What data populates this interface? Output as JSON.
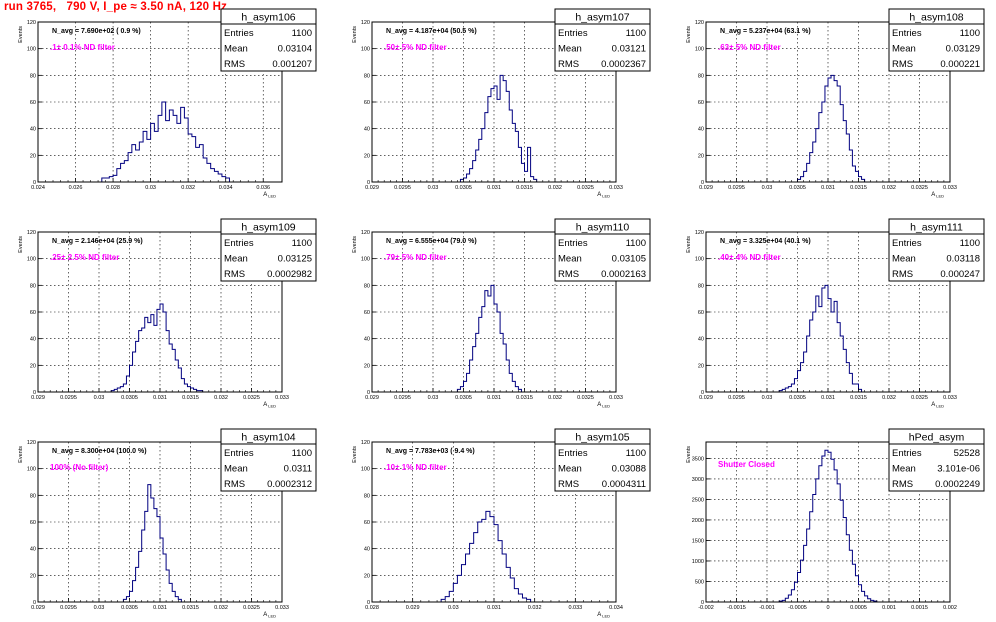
{
  "page": {
    "title": "run 3765,   790 V, I_pe ≈ 3.50 nA, 120 Hz",
    "title_color": "#ff0000",
    "hist_color": "#000080",
    "label_color": "#ff00ff"
  },
  "chart_data": [
    {
      "type": "histogram",
      "name": "h_asym106",
      "nevents": "N_avg = 7.690e+02 ( 0.9 %)",
      "filter_label": ".1± 0.1% ND filter",
      "stats": [
        [
          "Entries",
          "1100"
        ],
        [
          "Mean",
          "0.03104"
        ],
        [
          "RMS",
          "0.001207"
        ]
      ],
      "xlim": [
        0.024,
        0.037
      ],
      "ylim": [
        0,
        120
      ],
      "x_ticks": [
        0.024,
        0.026,
        0.028,
        0.03,
        0.032,
        0.034,
        0.036
      ],
      "x_tick_labels": [
        "0.024",
        "0.026",
        "0.028",
        "0.03",
        "0.032",
        "0.034",
        "0.036"
      ],
      "y_ticks": [
        0,
        20,
        40,
        60,
        80,
        100,
        120
      ],
      "xlabel": "A",
      "xlabel_sub": "LED",
      "ylabel": "Events",
      "bins": {
        "start": 0.0274,
        "width": 0.0002,
        "counts": [
          3,
          3,
          4,
          5,
          10,
          14,
          16,
          22,
          28,
          24,
          30,
          38,
          32,
          44,
          38,
          50,
          60,
          46,
          54,
          50,
          44,
          56,
          48,
          36,
          34,
          26,
          28,
          18,
          14,
          10,
          8,
          6,
          4,
          3
        ]
      }
    },
    {
      "type": "histogram",
      "name": "h_asym107",
      "nevents": "N_avg = 4.187e+04 (50.5 %)",
      "filter_label": ".50± 5% ND filter",
      "stats": [
        [
          "Entries",
          "1100"
        ],
        [
          "Mean",
          "0.03121"
        ],
        [
          "RMS",
          "0.0002367"
        ]
      ],
      "xlim": [
        0.029,
        0.033
      ],
      "ylim": [
        0,
        120
      ],
      "x_ticks": [
        0.029,
        0.0295,
        0.03,
        0.0305,
        0.031,
        0.0315,
        0.032,
        0.0325,
        0.033
      ],
      "x_tick_labels": [
        "0.029",
        "0.0295",
        "0.03",
        "0.0305",
        "0.031",
        "0.0315",
        "0.032",
        "0.0325",
        "0.033"
      ],
      "y_ticks": [
        0,
        20,
        40,
        60,
        80,
        100,
        120
      ],
      "xlabel": "A",
      "xlabel_sub": "LED",
      "ylabel": "Events",
      "bins": {
        "start": 0.03045,
        "width": 5e-05,
        "counts": [
          2,
          3,
          6,
          10,
          16,
          24,
          32,
          40,
          52,
          64,
          70,
          72,
          62,
          80,
          76,
          68,
          54,
          44,
          38,
          26,
          14,
          8,
          26,
          4,
          2
        ]
      }
    },
    {
      "type": "histogram",
      "name": "h_asym108",
      "nevents": "N_avg = 5.237e+04 (63.1 %)",
      "filter_label": ".63± 5% ND filter",
      "stats": [
        [
          "Entries",
          "1100"
        ],
        [
          "Mean",
          "0.03129"
        ],
        [
          "RMS",
          "0.000221"
        ]
      ],
      "xlim": [
        0.029,
        0.033
      ],
      "ylim": [
        0,
        120
      ],
      "x_ticks": [
        0.029,
        0.0295,
        0.03,
        0.0305,
        0.031,
        0.0315,
        0.032,
        0.0325,
        0.033
      ],
      "x_tick_labels": [
        "0.029",
        "0.0295",
        "0.03",
        "0.0305",
        "0.031",
        "0.0315",
        "0.032",
        "0.0325",
        "0.033"
      ],
      "y_ticks": [
        0,
        20,
        40,
        60,
        80,
        100,
        120
      ],
      "xlabel": "A",
      "xlabel_sub": "LED",
      "ylabel": "Events",
      "bins": {
        "start": 0.0305,
        "width": 5e-05,
        "counts": [
          2,
          4,
          8,
          14,
          22,
          30,
          40,
          52,
          60,
          72,
          78,
          80,
          76,
          72,
          58,
          46,
          36,
          24,
          12,
          8,
          4,
          2
        ]
      }
    },
    {
      "type": "histogram",
      "name": "h_asym109",
      "nevents": "N_avg = 2.146e+04 (25.9 %)",
      "filter_label": ".25± 2.5% ND filter",
      "stats": [
        [
          "Entries",
          "1100"
        ],
        [
          "Mean",
          "0.03125"
        ],
        [
          "RMS",
          "0.0002982"
        ]
      ],
      "xlim": [
        0.029,
        0.033
      ],
      "ylim": [
        0,
        120
      ],
      "x_ticks": [
        0.029,
        0.0295,
        0.03,
        0.0305,
        0.031,
        0.0315,
        0.032,
        0.0325,
        0.033
      ],
      "x_tick_labels": [
        "0.029",
        "0.0295",
        "0.03",
        "0.0305",
        "0.031",
        "0.0315",
        "0.032",
        "0.0325",
        "0.033"
      ],
      "y_ticks": [
        0,
        20,
        40,
        60,
        80,
        100,
        120
      ],
      "xlabel": "A",
      "xlabel_sub": "LED",
      "ylabel": "Events",
      "bins": {
        "start": 0.0302,
        "width": 5e-05,
        "counts": [
          1,
          2,
          3,
          4,
          6,
          12,
          20,
          30,
          38,
          46,
          48,
          56,
          52,
          58,
          50,
          62,
          66,
          60,
          46,
          36,
          32,
          24,
          18,
          10,
          6,
          4,
          3,
          2,
          1,
          1
        ]
      }
    },
    {
      "type": "histogram",
      "name": "h_asym110",
      "nevents": "N_avg = 6.555e+04 (79.0 %)",
      "filter_label": ".79± 5% ND filter",
      "stats": [
        [
          "Entries",
          "1100"
        ],
        [
          "Mean",
          "0.03105"
        ],
        [
          "RMS",
          "0.0002163"
        ]
      ],
      "xlim": [
        0.029,
        0.033
      ],
      "ylim": [
        0,
        120
      ],
      "x_ticks": [
        0.029,
        0.0295,
        0.03,
        0.0305,
        0.031,
        0.0315,
        0.032,
        0.0325,
        0.033
      ],
      "x_tick_labels": [
        "0.029",
        "0.0295",
        "0.03",
        "0.0305",
        "0.031",
        "0.0315",
        "0.032",
        "0.0325",
        "0.033"
      ],
      "y_ticks": [
        0,
        20,
        40,
        60,
        80,
        100,
        120
      ],
      "xlabel": "A",
      "xlabel_sub": "LED",
      "ylabel": "Events",
      "bins": {
        "start": 0.0304,
        "width": 5e-05,
        "counts": [
          2,
          4,
          8,
          14,
          24,
          34,
          44,
          56,
          64,
          76,
          72,
          80,
          66,
          60,
          44,
          36,
          24,
          14,
          8,
          4,
          2
        ]
      }
    },
    {
      "type": "histogram",
      "name": "h_asym111",
      "nevents": "N_avg = 3.325e+04 (40.1 %)",
      "filter_label": ".40± 4% ND filter",
      "stats": [
        [
          "Entries",
          "1100"
        ],
        [
          "Mean",
          "0.03118"
        ],
        [
          "RMS",
          "0.000247"
        ]
      ],
      "xlim": [
        0.029,
        0.033
      ],
      "ylim": [
        0,
        120
      ],
      "x_ticks": [
        0.029,
        0.0295,
        0.03,
        0.0305,
        0.031,
        0.0315,
        0.032,
        0.0325,
        0.033
      ],
      "x_tick_labels": [
        "0.029",
        "0.0295",
        "0.03",
        "0.0305",
        "0.031",
        "0.0315",
        "0.032",
        "0.0325",
        "0.033"
      ],
      "y_ticks": [
        0,
        20,
        40,
        60,
        80,
        100,
        120
      ],
      "xlabel": "A",
      "xlabel_sub": "LED",
      "ylabel": "Events",
      "bins": {
        "start": 0.0302,
        "width": 5e-05,
        "counts": [
          1,
          2,
          3,
          4,
          6,
          10,
          16,
          22,
          30,
          42,
          54,
          60,
          72,
          64,
          78,
          80,
          70,
          60,
          68,
          52,
          42,
          32,
          22,
          14,
          6,
          6,
          2
        ]
      }
    },
    {
      "type": "histogram",
      "name": "h_asym104",
      "nevents": "N_avg = 8.300e+04 (100.0 %)",
      "filter_label": "100% (No filter)",
      "stats": [
        [
          "Entries",
          "1100"
        ],
        [
          "Mean",
          "0.0311"
        ],
        [
          "RMS",
          "0.0002312"
        ]
      ],
      "xlim": [
        0.029,
        0.033
      ],
      "ylim": [
        0,
        120
      ],
      "x_ticks": [
        0.029,
        0.0295,
        0.03,
        0.0305,
        0.031,
        0.0315,
        0.032,
        0.0325,
        0.033
      ],
      "x_tick_labels": [
        "0.029",
        "0.0295",
        "0.03",
        "0.0305",
        "0.031",
        "0.0315",
        "0.032",
        "0.0325",
        "0.033"
      ],
      "y_ticks": [
        0,
        20,
        40,
        60,
        80,
        100,
        120
      ],
      "xlabel": "A",
      "xlabel_sub": "LED",
      "ylabel": "Events",
      "bins": {
        "start": 0.0304,
        "width": 5e-05,
        "counts": [
          2,
          4,
          8,
          16,
          26,
          38,
          54,
          68,
          88,
          78,
          70,
          64,
          48,
          36,
          24,
          14,
          8,
          4,
          2
        ]
      }
    },
    {
      "type": "histogram",
      "name": "h_asym105",
      "nevents": "N_avg = 7.783e+03 ( 9.4 %)",
      "filter_label": ".10± 1% ND filter",
      "stats": [
        [
          "Entries",
          "1100"
        ],
        [
          "Mean",
          "0.03088"
        ],
        [
          "RMS",
          "0.0004311"
        ]
      ],
      "xlim": [
        0.028,
        0.034
      ],
      "ylim": [
        0,
        120
      ],
      "x_ticks": [
        0.028,
        0.029,
        0.03,
        0.031,
        0.032,
        0.033,
        0.034
      ],
      "x_tick_labels": [
        "0.028",
        "0.029",
        "0.03",
        "0.031",
        "0.032",
        "0.033",
        "0.034"
      ],
      "y_ticks": [
        0,
        20,
        40,
        60,
        80,
        100,
        120
      ],
      "xlabel": "A",
      "xlabel_sub": "LED",
      "ylabel": "Events",
      "bins": {
        "start": 0.0297,
        "width": 0.0001,
        "counts": [
          2,
          4,
          8,
          14,
          20,
          28,
          36,
          44,
          52,
          60,
          62,
          68,
          64,
          58,
          46,
          36,
          26,
          18,
          10,
          6,
          3,
          2
        ]
      }
    },
    {
      "type": "histogram",
      "name": "hPed_asym",
      "nevents": "",
      "filter_label": "Shutter Closed",
      "stats": [
        [
          "Entries",
          "52528"
        ],
        [
          "Mean",
          "3.101e-06"
        ],
        [
          "RMS",
          "0.0002249"
        ]
      ],
      "xlim": [
        -0.002,
        0.002
      ],
      "ylim": [
        0,
        3900
      ],
      "x_ticks": [
        -0.002,
        -0.0015,
        -0.001,
        -0.0005,
        0,
        0.0005,
        0.001,
        0.0015,
        0.002
      ],
      "x_tick_labels": [
        "-0.002",
        "-0.0015",
        "-0.001",
        "-0.0005",
        "0",
        "0.0005",
        "0.001",
        "0.0015",
        "0.002"
      ],
      "y_ticks": [
        0,
        500,
        1000,
        1500,
        2000,
        2500,
        3000,
        3500
      ],
      "xlabel": "",
      "xlabel_sub": "",
      "ylabel": "Events",
      "bins": {
        "start": -0.0008,
        "width": 5e-05,
        "counts": [
          20,
          40,
          90,
          170,
          300,
          480,
          720,
          1020,
          1380,
          1780,
          2200,
          2620,
          3000,
          3320,
          3560,
          3700,
          3650,
          3480,
          3220,
          2880,
          2480,
          2060,
          1640,
          1260,
          920,
          640,
          420,
          260,
          150,
          80,
          40,
          20
        ]
      }
    }
  ]
}
